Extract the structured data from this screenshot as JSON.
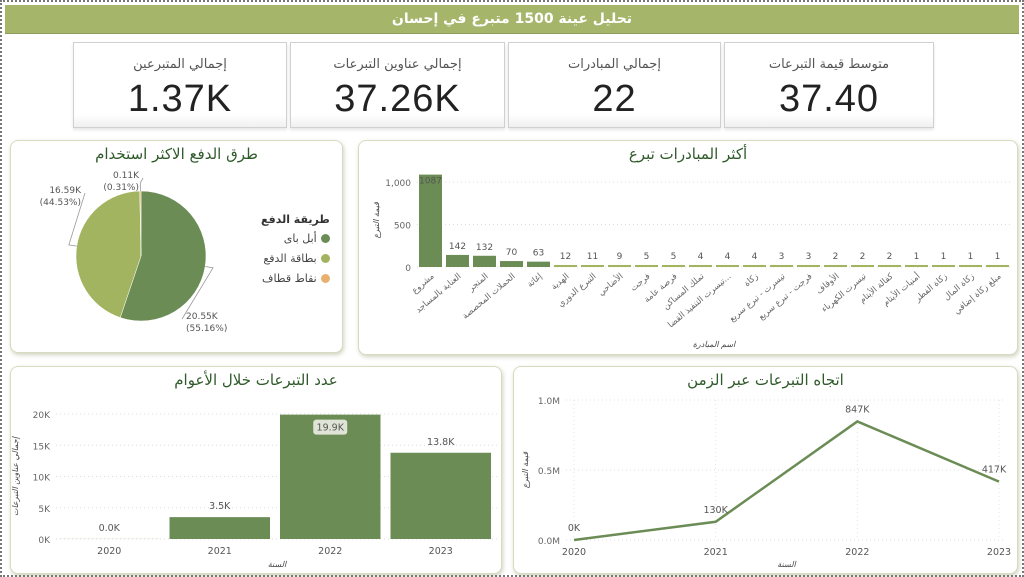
{
  "header": {
    "title": "تحليل عينة 1500 متبرع في إحسان"
  },
  "kpis": [
    {
      "label": "إجمالي المتبرعين",
      "value": "1.37K"
    },
    {
      "label": "إجمالي عناوين التبرعات",
      "value": "37.26K"
    },
    {
      "label": "إجمالي المبادرات",
      "value": "22"
    },
    {
      "label": "متوسط قيمة التبرعات",
      "value": "37.40"
    }
  ],
  "colors": {
    "dark_green": "#6b8c55",
    "light_green": "#a3b461",
    "orange": "#e8b070",
    "header": "#a5b56a"
  },
  "chart_data": [
    {
      "type": "pie",
      "title": "طرق الدفع الاكثر استخدام",
      "legend_title": "طريقة الدفع",
      "legend_position": "right",
      "slices": [
        {
          "name": "أبل باى",
          "value": 20.55,
          "value_label": "20.55K",
          "percent_label": "(55.16%)",
          "color": "#6b8c55"
        },
        {
          "name": "بطاقة الدفع",
          "value": 16.59,
          "value_label": "16.59K",
          "percent_label": "(44.53%)",
          "color": "#a3b461"
        },
        {
          "name": "نقاط قطاف",
          "value": 0.11,
          "value_label": "0.11K",
          "percent_label": "(0.31%)",
          "color": "#e8b070"
        }
      ]
    },
    {
      "type": "bar",
      "title": "أكثر المبادرات تبرع",
      "xlabel": "اسم المبادرة",
      "ylabel": "قيمة التبرع",
      "ylim": [
        0,
        1100
      ],
      "yticks": [
        0,
        500,
        1000
      ],
      "ytick_labels": [
        "0",
        "500",
        "1,000"
      ],
      "grid": true,
      "categories": [
        "مشروع",
        "العناية بالمساجد",
        "المتجر",
        "الحملات المخصصة",
        "إغاثة",
        "الهدية",
        "التبرع الدوري",
        "الأضاحي",
        "فرجت",
        "فرصة عامة",
        "تملك المساكن",
        "تيسرت التنفيذ القضا...",
        "زكاة",
        "تيسرت - تبرع سريع",
        "فرجت - تبرع سريع",
        "الأوقاف",
        "تيسرت الكهرباء",
        "كفالة الأيتام",
        "أمنيات الأيتام",
        "زكاة الفطر",
        "زكاة المال",
        "مبلغ زكاة إضافي"
      ],
      "values": [
        1087,
        142,
        132,
        70,
        63,
        12,
        11,
        9,
        5,
        5,
        4,
        4,
        4,
        3,
        3,
        2,
        2,
        2,
        1,
        1,
        1,
        1
      ]
    },
    {
      "type": "bar",
      "title": "عدد التبرعات خلال الأعوام",
      "xlabel": "السنة",
      "ylabel": "إجمالي عناوين التبرعات",
      "ylim": [
        0,
        20000
      ],
      "yticks": [
        0,
        5000,
        10000,
        15000,
        20000
      ],
      "ytick_labels": [
        "0K",
        "5K",
        "10K",
        "15K",
        "20K"
      ],
      "grid": true,
      "categories": [
        "2020",
        "2021",
        "2022",
        "2023"
      ],
      "values": [
        20,
        3500,
        19900,
        13800
      ],
      "data_labels": [
        "0.0K",
        "3.5K",
        "19.9K",
        "13.8K"
      ]
    },
    {
      "type": "line",
      "title": "اتجاه التبرعات عبر الزمن",
      "xlabel": "السنة",
      "ylabel": "قيمة التبرع",
      "ylim": [
        0,
        1000000
      ],
      "yticks": [
        0,
        500000,
        1000000
      ],
      "ytick_labels": [
        "0.0M",
        "0.5M",
        "1.0M"
      ],
      "grid": true,
      "x": [
        "2020",
        "2021",
        "2022",
        "2023"
      ],
      "values": [
        0,
        130000,
        847000,
        417000
      ],
      "data_labels": [
        "0K",
        "130K",
        "847K",
        "417K"
      ]
    }
  ]
}
